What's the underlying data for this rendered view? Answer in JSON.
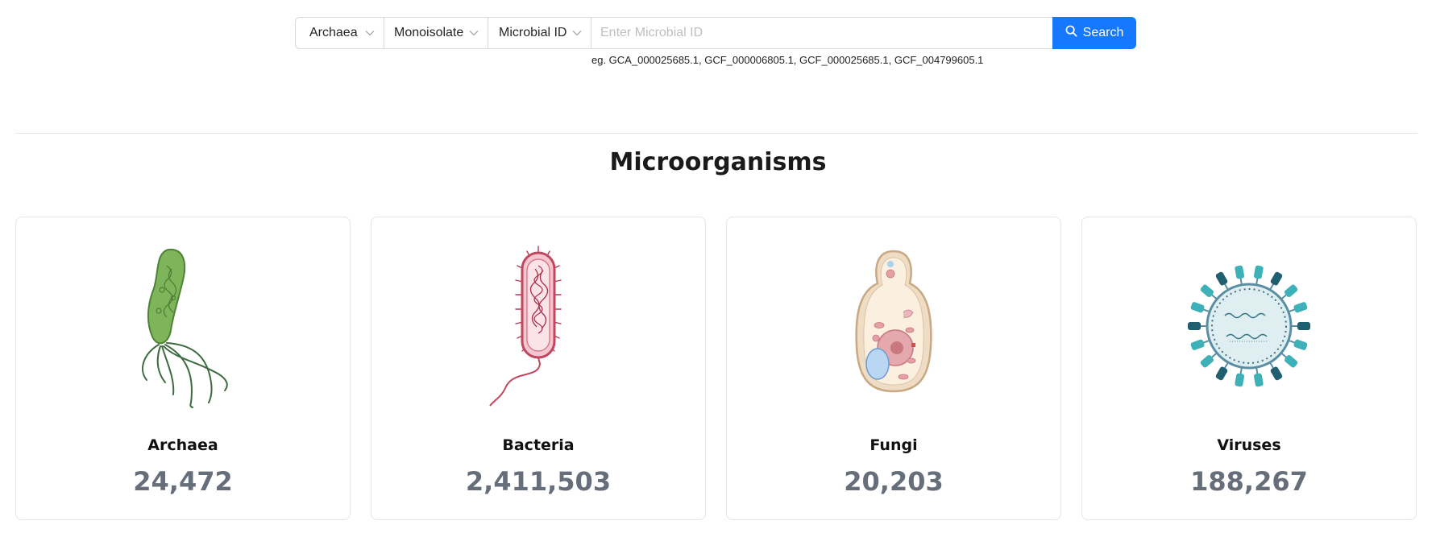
{
  "search": {
    "filters": [
      {
        "value": "Archaea"
      },
      {
        "value": "Monoisolate"
      },
      {
        "value": "Microbial ID"
      }
    ],
    "placeholder": "Enter Microbial ID",
    "button_label": "Search",
    "example": "eg. GCA_000025685.1, GCF_000006805.1, GCF_000025685.1, GCF_004799605.1"
  },
  "section": {
    "title": "Microorganisms"
  },
  "cards": [
    {
      "name": "Archaea",
      "count": "24,472",
      "icon": "archaea-illustration"
    },
    {
      "name": "Bacteria",
      "count": "2,411,503",
      "icon": "bacteria-illustration"
    },
    {
      "name": "Fungi",
      "count": "20,203",
      "icon": "fungi-illustration"
    },
    {
      "name": "Viruses",
      "count": "188,267",
      "icon": "virus-illustration"
    }
  ],
  "colors": {
    "primary": "#1677ff",
    "count_text": "#666e7a"
  }
}
